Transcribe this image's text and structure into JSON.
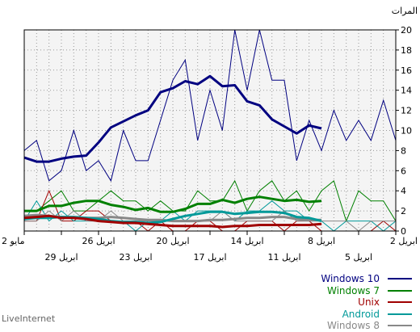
{
  "chart_data": {
    "type": "line",
    "ylabel": "المرات",
    "ylim": [
      0,
      20
    ],
    "yticks": [
      0,
      2,
      4,
      6,
      8,
      10,
      12,
      14,
      16,
      18,
      20
    ],
    "grid": true,
    "legend_position": "bottom-right",
    "x_ticks_upper": [
      "2 مايو",
      "26 ابريل",
      "20 ابريل",
      "14 ابريل",
      "8 ابريل",
      "2 ابريل"
    ],
    "x_ticks_lower": [
      "29 ابريل",
      "23 ابريل",
      "17 ابريل",
      "11 ابريل",
      "5 ابريل"
    ],
    "series": [
      {
        "name": "Windows 10",
        "color": "#000080",
        "values": [
          8,
          9,
          5,
          6,
          10,
          6,
          7,
          5,
          10,
          7,
          7,
          11,
          15,
          17,
          9,
          14,
          10,
          20,
          14,
          20,
          15,
          15,
          7,
          11,
          8,
          12,
          9,
          11,
          9,
          13,
          9
        ],
        "trend": [
          7.3,
          6.9,
          6.9,
          7.2,
          7.4,
          7.5,
          8.8,
          10.3,
          10.9,
          11.5,
          12.0,
          13.8,
          14.2,
          14.9,
          14.6,
          15.4,
          14.4,
          14.5,
          12.9,
          12.5,
          11.1,
          10.4,
          9.7,
          10.5,
          10.2
        ]
      },
      {
        "name": "Windows 7",
        "color": "#008000",
        "values": [
          2,
          2,
          3,
          4,
          2,
          2,
          3,
          4,
          3,
          3,
          2,
          3,
          2,
          2,
          4,
          3,
          3,
          5,
          2,
          4,
          5,
          3,
          4,
          2,
          4,
          5,
          1,
          4,
          3,
          3,
          1
        ],
        "trend": [
          2.0,
          2.0,
          2.5,
          2.5,
          2.8,
          3.0,
          3.0,
          2.6,
          2.4,
          2.1,
          2.3,
          1.9,
          1.9,
          2.2,
          2.7,
          2.7,
          3.1,
          2.8,
          3.2,
          3.4,
          3.2,
          3.0,
          3.1,
          2.9,
          3.0
        ]
      },
      {
        "name": "Unix",
        "color": "#a00000",
        "values": [
          1,
          1,
          4,
          1,
          1,
          2,
          2,
          1,
          1,
          1,
          0,
          1,
          0,
          0,
          1,
          1,
          0,
          0,
          1,
          1,
          1,
          0,
          1,
          1,
          0,
          0,
          0,
          0,
          0,
          1,
          0
        ],
        "trend": [
          1.3,
          1.4,
          1.5,
          1.3,
          1.3,
          1.2,
          1.0,
          0.9,
          0.8,
          0.8,
          0.7,
          0.6,
          0.5,
          0.5,
          0.5,
          0.5,
          0.4,
          0.5,
          0.5,
          0.6,
          0.6,
          0.6,
          0.6,
          0.6,
          0.7
        ]
      },
      {
        "name": "Android",
        "color": "#009999",
        "values": [
          1,
          3,
          1,
          2,
          1,
          1,
          1,
          1,
          1,
          0,
          1,
          1,
          2,
          1,
          2,
          2,
          2,
          1,
          2,
          2,
          3,
          2,
          2,
          1,
          1,
          0,
          1,
          1,
          1,
          0,
          1
        ],
        "trend": [
          1.2,
          1.3,
          1.3,
          1.4,
          1.4,
          1.3,
          1.2,
          1.0,
          0.9,
          0.9,
          0.8,
          0.9,
          1.2,
          1.5,
          1.7,
          1.9,
          1.9,
          1.7,
          1.8,
          1.9,
          1.9,
          1.8,
          1.4,
          1.3,
          1.0
        ]
      },
      {
        "name": "Windows 8",
        "color": "#888888",
        "values": [
          1,
          1,
          2,
          1,
          2,
          1,
          1,
          2,
          1,
          1,
          1,
          1,
          1,
          1,
          1,
          1,
          2,
          1,
          1,
          1,
          1,
          2,
          1,
          1,
          1,
          1,
          1,
          0,
          1,
          1,
          1
        ],
        "trend": [
          1.5,
          1.6,
          1.5,
          1.4,
          1.3,
          1.3,
          1.3,
          1.4,
          1.3,
          1.2,
          1.1,
          1.1,
          1.0,
          1.0,
          1.0,
          1.1,
          1.1,
          1.2,
          1.3,
          1.3,
          1.4,
          1.4,
          1.2,
          1.1,
          1.1
        ]
      }
    ]
  },
  "branding": "LiveInternet"
}
